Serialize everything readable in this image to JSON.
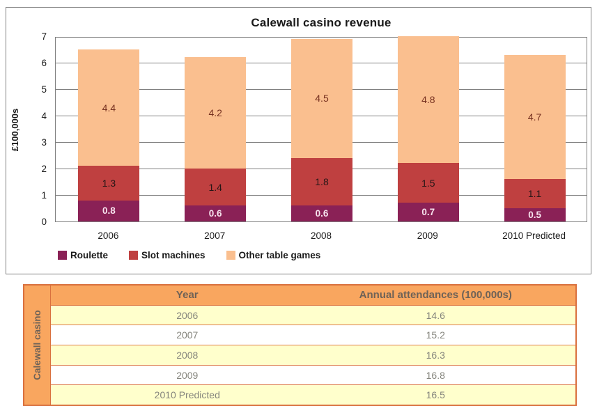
{
  "chart_data": {
    "type": "bar",
    "stacked": true,
    "title": "Calewall casino revenue",
    "ylabel": "£100,000s",
    "xlabel": "",
    "ylim": [
      0,
      7
    ],
    "ytick_step": 1,
    "grid": true,
    "legend_position": "bottom",
    "categories": [
      "2006",
      "2007",
      "2008",
      "2009",
      "2010 Predicted"
    ],
    "series": [
      {
        "name": "Roulette",
        "color": "#8a2156",
        "values": [
          0.8,
          0.6,
          0.6,
          0.7,
          0.5
        ]
      },
      {
        "name": "Slot machines",
        "color": "#bf4040",
        "values": [
          1.3,
          1.4,
          1.8,
          1.5,
          1.1
        ]
      },
      {
        "name": "Other table games",
        "color": "#fabf8f",
        "values": [
          4.4,
          4.2,
          4.5,
          4.8,
          4.7
        ]
      }
    ]
  },
  "table": {
    "row_label": "Calewall casino",
    "columns": [
      "Year",
      "Annual attendances (100,000s)"
    ],
    "rows": [
      [
        "2006",
        "14.6"
      ],
      [
        "2007",
        "15.2"
      ],
      [
        "2008",
        "16.3"
      ],
      [
        "2009",
        "16.8"
      ],
      [
        "2010 Predicted",
        "16.5"
      ]
    ],
    "colors": {
      "header_bg": "#f9a65f",
      "border": "#d9703e",
      "row_alt_bg": "#ffffcc",
      "row_bg": "#ffffff",
      "header_text": "#6e6257",
      "value_text": "#85857d"
    }
  },
  "panel": {
    "plot_border": "#808080",
    "gridline": "#808080"
  }
}
